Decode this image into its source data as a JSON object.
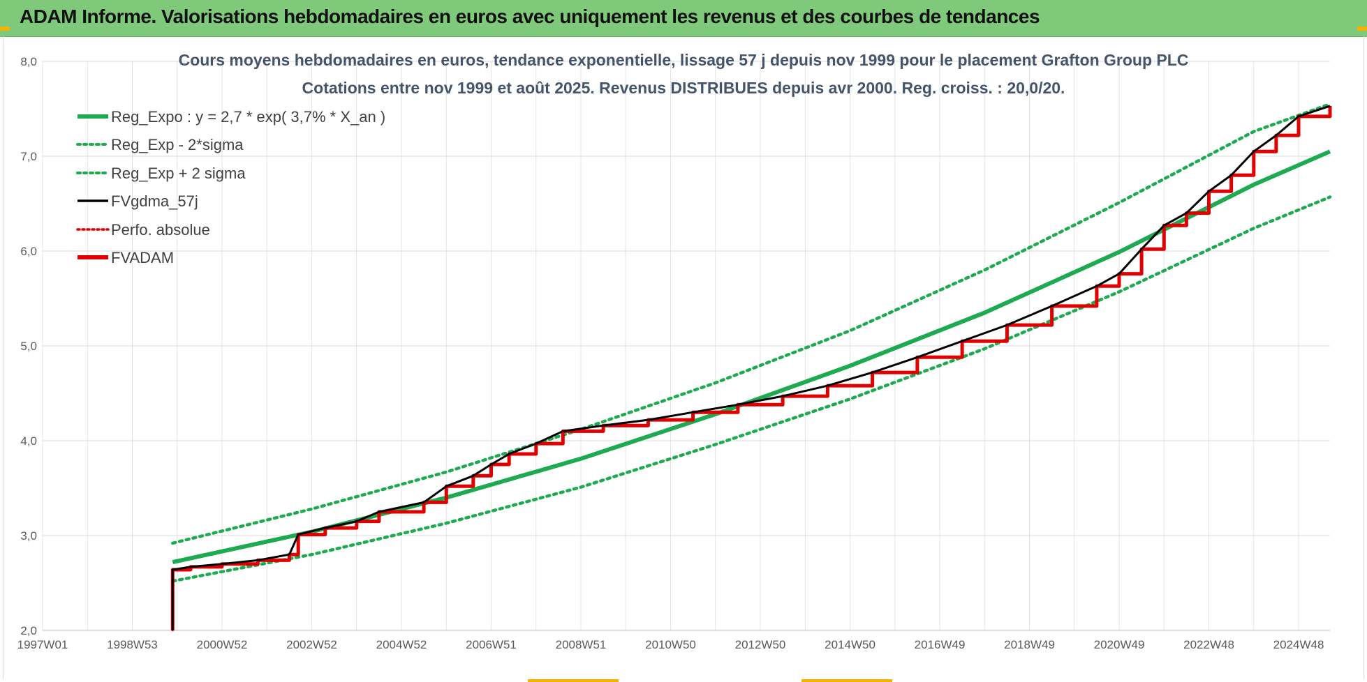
{
  "banner": {
    "title": "ADAM Informe. Valorisations hebdomadaires en euros avec uniquement les revenus et des courbes de tendances"
  },
  "colors": {
    "banner_bg": "#7fc97a",
    "accent": "#f2b400",
    "green": "#1eaa50",
    "black": "#000000",
    "red": "#e00000"
  },
  "chart_data": {
    "type": "line",
    "title_lines": [
      "Cours moyens hebdomadaires en euros, tendance exponentielle, lissage 57 j depuis nov 1999 pour le placement Grafton Group PLC",
      "Cotations entre nov 1999 et août 2025. Revenus DISTRIBUES depuis avr 2000. Reg. croiss. : 20,0/20."
    ],
    "x_tick_labels": [
      "1997W01",
      "1998W53",
      "2000W52",
      "2002W52",
      "2004W52",
      "2006W51",
      "2008W51",
      "2010W50",
      "2012W50",
      "2014W50",
      "2016W49",
      "2018W49",
      "2020W49",
      "2022W48",
      "2024W48"
    ],
    "x_tick_years": [
      1997.0,
      1999.0,
      2001.0,
      2003.0,
      2005.0,
      2007.0,
      2009.0,
      2011.0,
      2013.0,
      2015.0,
      2017.0,
      2019.0,
      2021.0,
      2023.0,
      2025.0
    ],
    "xlim": [
      1997.0,
      2025.7
    ],
    "ylim": [
      2.0,
      8.0
    ],
    "y_ticks": [
      "2,0",
      "3,0",
      "4,0",
      "5,0",
      "6,0",
      "7,0",
      "8,0"
    ],
    "y_tick_values": [
      2.0,
      3.0,
      4.0,
      5.0,
      6.0,
      7.0,
      8.0
    ],
    "grid": true,
    "legend_position": "top-left",
    "series": [
      {
        "name": "Reg_Expo : y = 2,7 * exp( 3,7% *  X_an )",
        "style": "solid-thick",
        "color": "#1eaa50",
        "x": [
          1999.9,
          2003.0,
          2006.0,
          2009.0,
          2012.0,
          2015.0,
          2018.0,
          2021.0,
          2024.0,
          2025.7
        ],
        "values": [
          2.72,
          3.04,
          3.4,
          3.81,
          4.28,
          4.79,
          5.35,
          5.99,
          6.7,
          7.05
        ]
      },
      {
        "name": "Reg_Exp - 2*sigma",
        "style": "dotted",
        "color": "#1eaa50",
        "x": [
          1999.9,
          2003.0,
          2006.0,
          2009.0,
          2012.0,
          2015.0,
          2018.0,
          2021.0,
          2024.0,
          2025.7
        ],
        "values": [
          2.52,
          2.8,
          3.13,
          3.51,
          3.96,
          4.44,
          4.97,
          5.57,
          6.24,
          6.57
        ]
      },
      {
        "name": "Reg_Exp + 2 sigma",
        "style": "dotted",
        "color": "#1eaa50",
        "x": [
          1999.9,
          2003.0,
          2006.0,
          2009.0,
          2012.0,
          2015.0,
          2018.0,
          2021.0,
          2024.0,
          2025.7
        ],
        "values": [
          2.92,
          3.28,
          3.67,
          4.12,
          4.61,
          5.16,
          5.8,
          6.51,
          7.26,
          7.55
        ]
      },
      {
        "name": "FVgdma_57j",
        "style": "solid",
        "color": "#000000",
        "x": [
          1999.9,
          1999.9,
          2000.3,
          2001.0,
          2001.8,
          2002.5,
          2002.7,
          2003.3,
          2004.0,
          2004.5,
          2005.5,
          2006.0,
          2006.6,
          2007.0,
          2007.4,
          2008.0,
          2008.6,
          2009.5,
          2010.5,
          2011.5,
          2012.5,
          2013.5,
          2014.5,
          2015.5,
          2016.5,
          2017.5,
          2018.5,
          2019.5,
          2020.5,
          2021.0,
          2021.5,
          2022.0,
          2022.5,
          2023.0,
          2023.5,
          2024.0,
          2024.5,
          2025.0,
          2025.7
        ],
        "values": [
          2.0,
          2.64,
          2.67,
          2.7,
          2.74,
          2.8,
          3.01,
          3.08,
          3.15,
          3.25,
          3.35,
          3.52,
          3.63,
          3.75,
          3.86,
          3.97,
          4.1,
          4.16,
          4.22,
          4.3,
          4.38,
          4.47,
          4.58,
          4.72,
          4.88,
          5.05,
          5.22,
          5.42,
          5.63,
          5.76,
          6.02,
          6.27,
          6.4,
          6.63,
          6.8,
          7.05,
          7.22,
          7.42,
          7.53
        ]
      },
      {
        "name": "Perfo. absolue",
        "style": "dotted",
        "color": "#e00000",
        "x": [
          1999.9,
          1999.9,
          2000.3,
          2001.0,
          2001.8,
          2002.5,
          2002.7,
          2003.3,
          2004.0,
          2004.5,
          2005.5,
          2006.0,
          2006.6,
          2007.0,
          2007.4,
          2008.0,
          2008.6,
          2009.5,
          2010.5,
          2011.5,
          2012.5,
          2013.5,
          2014.5,
          2015.5,
          2016.5,
          2017.5,
          2018.5,
          2019.5,
          2020.5,
          2021.0,
          2021.5,
          2022.0,
          2022.5,
          2023.0,
          2023.5,
          2024.0,
          2024.5,
          2025.0,
          2025.7
        ],
        "values": [
          2.0,
          2.64,
          2.67,
          2.7,
          2.74,
          2.8,
          3.01,
          3.08,
          3.15,
          3.25,
          3.35,
          3.52,
          3.63,
          3.75,
          3.86,
          3.97,
          4.1,
          4.16,
          4.22,
          4.3,
          4.38,
          4.47,
          4.58,
          4.72,
          4.88,
          5.05,
          5.22,
          5.42,
          5.63,
          5.76,
          6.02,
          6.27,
          6.4,
          6.63,
          6.8,
          7.05,
          7.22,
          7.42,
          7.53
        ]
      },
      {
        "name": "FVADAM",
        "style": "step-thick",
        "color": "#e00000",
        "x": [
          1999.9,
          1999.9,
          2000.3,
          2001.0,
          2001.8,
          2002.5,
          2002.7,
          2003.3,
          2004.0,
          2004.5,
          2005.5,
          2006.0,
          2006.6,
          2007.0,
          2007.4,
          2008.0,
          2008.6,
          2009.5,
          2010.5,
          2011.5,
          2012.5,
          2013.5,
          2014.5,
          2015.5,
          2016.5,
          2017.5,
          2018.5,
          2019.5,
          2020.5,
          2021.0,
          2021.5,
          2022.0,
          2022.5,
          2023.0,
          2023.5,
          2024.0,
          2024.5,
          2025.0,
          2025.7
        ],
        "values": [
          2.0,
          2.64,
          2.67,
          2.7,
          2.74,
          2.8,
          3.01,
          3.08,
          3.15,
          3.25,
          3.35,
          3.52,
          3.63,
          3.75,
          3.86,
          3.97,
          4.1,
          4.16,
          4.22,
          4.3,
          4.38,
          4.47,
          4.58,
          4.72,
          4.88,
          5.05,
          5.22,
          5.42,
          5.63,
          5.76,
          6.02,
          6.27,
          6.4,
          6.63,
          6.8,
          7.05,
          7.22,
          7.42,
          7.53
        ]
      }
    ]
  }
}
